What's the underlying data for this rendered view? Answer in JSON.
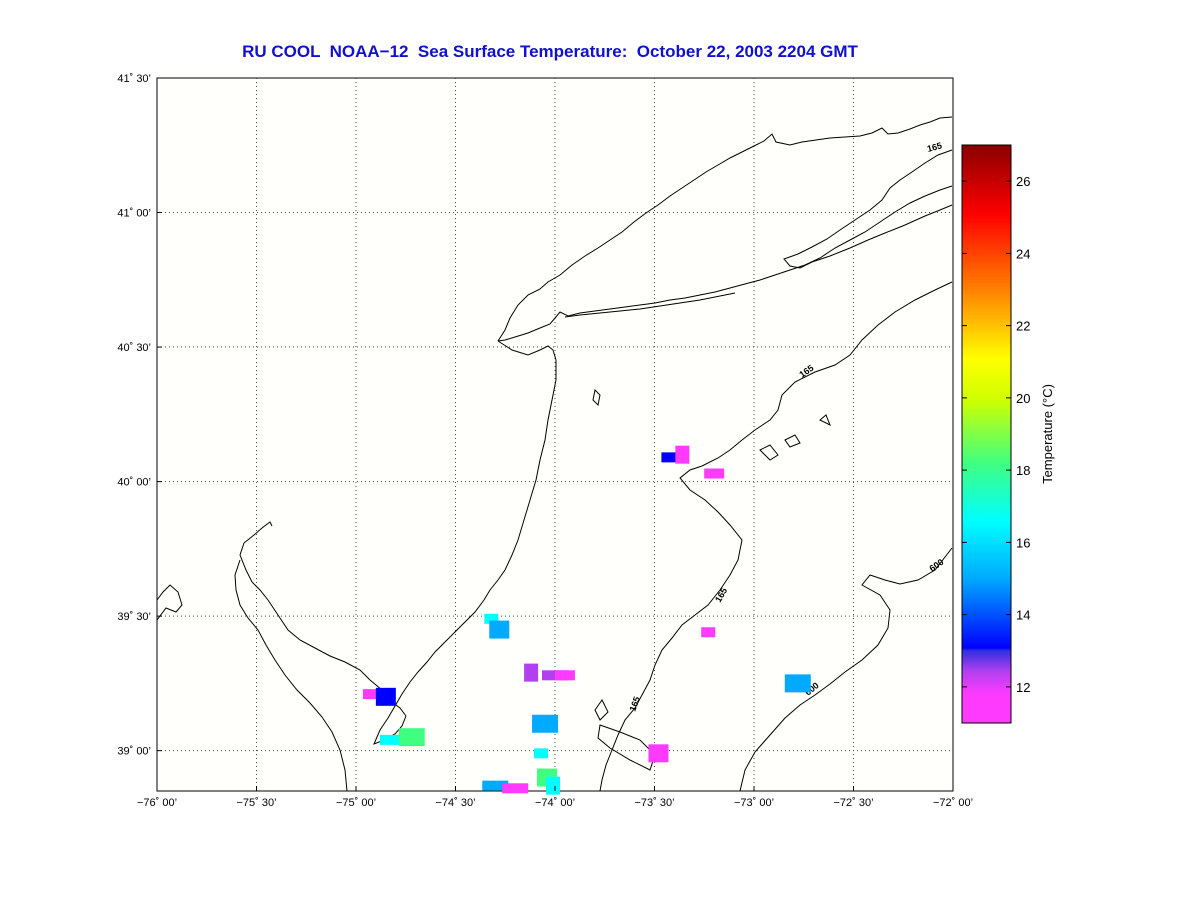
{
  "title": "RU COOL  NOAA−12  Sea Surface Temperature:  October 22, 2003 2204 GMT",
  "map": {
    "lon_range": [
      -76.0,
      -72.0
    ],
    "lat_range": [
      38.85,
      41.5
    ],
    "x_ticks": [
      {
        "lon": -76.0,
        "label": "−76˚ 00’"
      },
      {
        "lon": -75.5,
        "label": "−75˚ 30’"
      },
      {
        "lon": -75.0,
        "label": "−75˚ 00’"
      },
      {
        "lon": -74.5,
        "label": "−74˚ 30’"
      },
      {
        "lon": -74.0,
        "label": "−74˚ 00’"
      },
      {
        "lon": -73.5,
        "label": "−73˚ 30’"
      },
      {
        "lon": -73.0,
        "label": "−73˚ 00’"
      },
      {
        "lon": -72.5,
        "label": "−72˚ 30’"
      },
      {
        "lon": -72.0,
        "label": "−72˚ 00’"
      }
    ],
    "y_ticks": [
      {
        "lat": 41.5,
        "label": "41˚ 30’"
      },
      {
        "lat": 41.0,
        "label": "41˚ 00’"
      },
      {
        "lat": 40.5,
        "label": "40˚ 30’"
      },
      {
        "lat": 40.0,
        "label": "40˚ 00’"
      },
      {
        "lat": 39.5,
        "label": "39˚ 30’"
      },
      {
        "lat": 39.0,
        "label": "39˚ 00’"
      }
    ],
    "grid": true,
    "background": "#fffffb",
    "isobath_labels": [
      "165",
      "165",
      "165",
      "165",
      "600",
      "600"
    ],
    "sst_patches": [
      {
        "lon": -74.93,
        "lat": 39.21,
        "temp": 11.5
      },
      {
        "lon": -74.85,
        "lat": 39.2,
        "temp": 12.5
      },
      {
        "lon": -74.0,
        "lat": 39.28,
        "temp": 11.8
      },
      {
        "lon": -74.12,
        "lat": 39.29,
        "temp": 12.2
      },
      {
        "lon": -73.95,
        "lat": 39.28,
        "temp": 11.3
      },
      {
        "lon": -74.05,
        "lat": 39.1,
        "temp": 15.0
      },
      {
        "lon": -74.07,
        "lat": 38.99,
        "temp": 16.5
      },
      {
        "lon": -74.04,
        "lat": 38.9,
        "temp": 16.8
      },
      {
        "lon": -74.3,
        "lat": 38.87,
        "temp": 13.5
      },
      {
        "lon": -74.01,
        "lat": 38.87,
        "temp": 15.5
      },
      {
        "lon": -74.83,
        "lat": 39.04,
        "temp": 16.0
      },
      {
        "lon": -74.72,
        "lat": 39.05,
        "temp": 17.0
      },
      {
        "lon": -74.32,
        "lat": 39.49,
        "temp": 15.8
      },
      {
        "lon": -74.28,
        "lat": 39.45,
        "temp": 14.5
      },
      {
        "lon": -73.4,
        "lat": 40.09,
        "temp": 13.0
      },
      {
        "lon": -73.36,
        "lat": 40.1,
        "temp": 11.2
      },
      {
        "lon": -73.2,
        "lat": 40.03,
        "temp": 11.4
      },
      {
        "lon": -72.78,
        "lat": 39.25,
        "temp": 13.5
      },
      {
        "lon": -73.23,
        "lat": 39.44,
        "temp": 11.2
      },
      {
        "lon": -73.48,
        "lat": 38.99,
        "temp": 11.5
      },
      {
        "lon": -74.2,
        "lat": 38.86,
        "temp": 11.3
      }
    ]
  },
  "colorbar": {
    "min": 11.0,
    "max": 27.0,
    "ticks": [
      12,
      14,
      16,
      18,
      20,
      22,
      24,
      26
    ],
    "label": "Temperature (°C)",
    "colors": [
      "#ff3aff",
      "#c23cf0",
      "#0000ff",
      "#00aaff",
      "#00ffff",
      "#40ff80",
      "#d0ff00",
      "#ffff00",
      "#ff8000",
      "#ff0000",
      "#8b0000"
    ]
  }
}
